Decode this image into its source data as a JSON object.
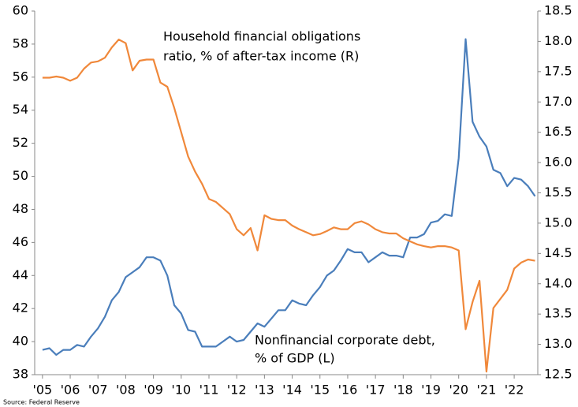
{
  "chart_data": {
    "type": "line",
    "annotations": [
      "Household financial obligations",
      "ratio, % of after-tax income (R)",
      "Nonfinancial corporate debt,",
      "% of GDP (L)"
    ],
    "source": "Source: Federal Reserve",
    "x": [
      2005,
      2005.25,
      2005.5,
      2005.75,
      2006,
      2006.25,
      2006.5,
      2006.75,
      2007,
      2007.25,
      2007.5,
      2007.75,
      2008,
      2008.25,
      2008.5,
      2008.75,
      2009,
      2009.25,
      2009.5,
      2009.75,
      2010,
      2010.25,
      2010.5,
      2010.75,
      2011,
      2011.25,
      2011.5,
      2011.75,
      2012,
      2012.25,
      2012.5,
      2012.75,
      2013,
      2013.25,
      2013.5,
      2013.75,
      2014,
      2014.25,
      2014.5,
      2014.75,
      2015,
      2015.25,
      2015.5,
      2015.75,
      2016,
      2016.25,
      2016.5,
      2016.75,
      2017,
      2017.25,
      2017.5,
      2017.75,
      2018,
      2018.25,
      2018.5,
      2018.75,
      2019,
      2019.25,
      2019.5,
      2019.75,
      2020,
      2020.25,
      2020.5,
      2020.75,
      2021,
      2021.25,
      2021.5,
      2021.75,
      2022,
      2022.25,
      2022.5,
      2022.75
    ],
    "series": [
      {
        "name": "Nonfinancial corporate debt, % of GDP",
        "color": "#4a7ebb",
        "axis": "y",
        "values": [
          39.5,
          39.6,
          39.2,
          39.5,
          39.5,
          39.8,
          39.7,
          40.3,
          40.8,
          41.5,
          42.5,
          43.0,
          43.9,
          44.2,
          44.5,
          45.1,
          45.1,
          44.9,
          44.0,
          42.2,
          41.7,
          40.7,
          40.6,
          39.7,
          39.7,
          39.7,
          40.0,
          40.3,
          40.0,
          40.1,
          40.6,
          41.1,
          40.9,
          41.4,
          41.9,
          41.9,
          42.5,
          42.3,
          42.2,
          42.8,
          43.3,
          44.0,
          44.3,
          44.9,
          45.6,
          45.4,
          45.4,
          44.8,
          45.1,
          45.4,
          45.2,
          45.2,
          45.1,
          46.3,
          46.3,
          46.5,
          47.2,
          47.3,
          47.7,
          47.6,
          51.1,
          58.3,
          53.3,
          52.4,
          51.8,
          50.4,
          50.2,
          49.4,
          49.9,
          49.8,
          49.4,
          48.8
        ]
      },
      {
        "name": "Household financial obligations ratio",
        "color": "#f0883a",
        "axis": "y2",
        "values": [
          17.4,
          17.4,
          17.42,
          17.4,
          17.35,
          17.4,
          17.55,
          17.65,
          17.67,
          17.73,
          17.9,
          18.03,
          17.97,
          17.52,
          17.68,
          17.7,
          17.7,
          17.32,
          17.25,
          16.9,
          16.5,
          16.1,
          15.85,
          15.65,
          15.4,
          15.35,
          15.25,
          15.15,
          14.9,
          14.8,
          14.92,
          14.55,
          15.13,
          15.07,
          15.05,
          15.05,
          14.96,
          14.9,
          14.85,
          14.8,
          14.82,
          14.87,
          14.93,
          14.9,
          14.9,
          15.0,
          15.03,
          14.98,
          14.9,
          14.85,
          14.83,
          14.83,
          14.75,
          14.7,
          14.65,
          14.62,
          14.6,
          14.62,
          14.62,
          14.6,
          14.55,
          13.25,
          13.7,
          14.05,
          12.55,
          13.6,
          13.75,
          13.9,
          14.25,
          14.35,
          14.4,
          14.38
        ]
      }
    ],
    "xlim": [
      2004.72,
      2022.85
    ],
    "xticks": [
      {
        "value": 2005,
        "label": "'05"
      },
      {
        "value": 2006,
        "label": "'06"
      },
      {
        "value": 2007,
        "label": "'07"
      },
      {
        "value": 2008,
        "label": "'08"
      },
      {
        "value": 2009,
        "label": "'09"
      },
      {
        "value": 2010,
        "label": "'10"
      },
      {
        "value": 2011,
        "label": "'11"
      },
      {
        "value": 2012,
        "label": "'12"
      },
      {
        "value": 2013,
        "label": "'13"
      },
      {
        "value": 2014,
        "label": "'14"
      },
      {
        "value": 2015,
        "label": "'15"
      },
      {
        "value": 2016,
        "label": "'16"
      },
      {
        "value": 2017,
        "label": "'17"
      },
      {
        "value": 2018,
        "label": "'18"
      },
      {
        "value": 2019,
        "label": "'19"
      },
      {
        "value": 2020,
        "label": "'20"
      },
      {
        "value": 2021,
        "label": "'21"
      },
      {
        "value": 2022,
        "label": "'22"
      }
    ],
    "ylim": [
      38,
      60
    ],
    "yticks": [
      38,
      40,
      42,
      44,
      46,
      48,
      50,
      52,
      54,
      56,
      58,
      60
    ],
    "y2lim": [
      12.5,
      18.5
    ],
    "y2ticks": [
      12.5,
      {
        "value": 13,
        "label": "13.0"
      },
      13.5,
      {
        "value": 14,
        "label": "14.0"
      },
      14.5,
      {
        "value": 15,
        "label": "15.0"
      },
      15.5,
      {
        "value": 16,
        "label": "16.0"
      },
      16.5,
      {
        "value": 17,
        "label": "17.0"
      },
      17.5,
      {
        "value": 18,
        "label": "18.0"
      },
      18.5
    ],
    "grid": false
  }
}
